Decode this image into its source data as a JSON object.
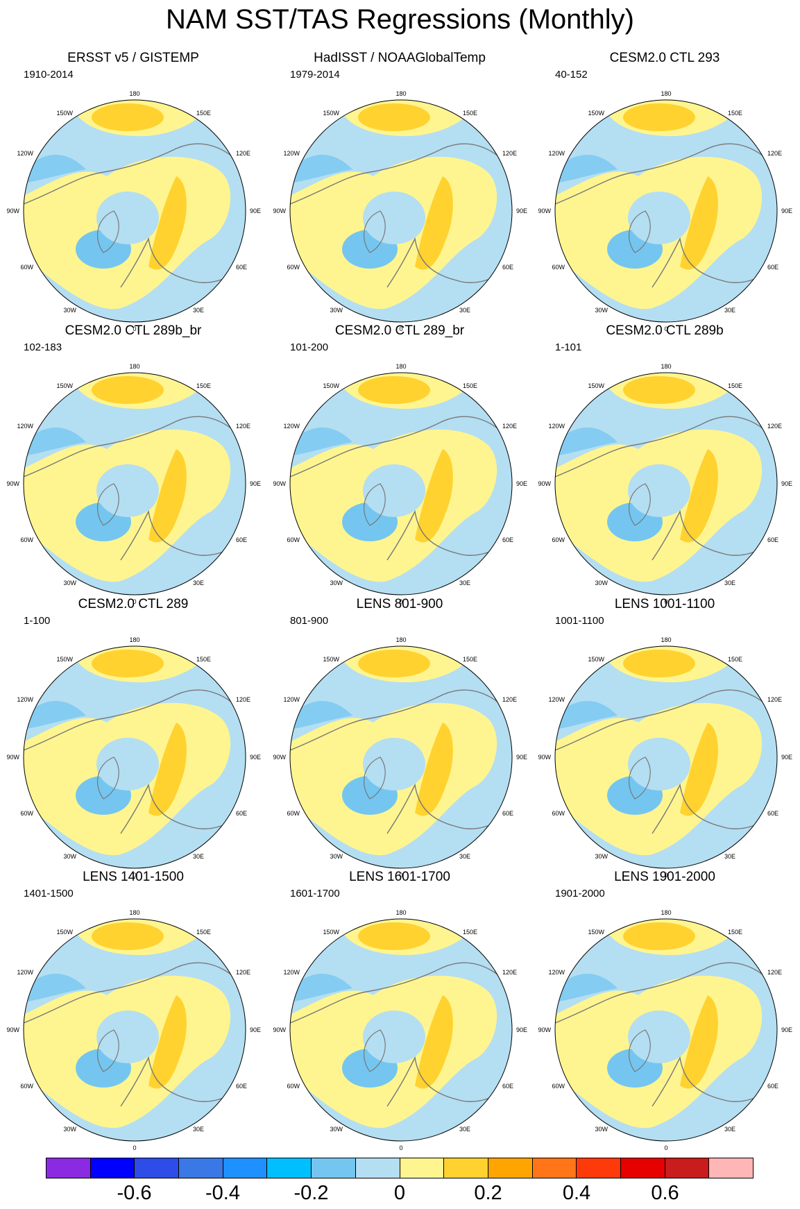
{
  "title": "NAM SST/TAS Regressions (Monthly)",
  "lon_labels": {
    "l180": "180",
    "l150e": "150E",
    "l120e": "120E",
    "l90e": "90E",
    "l60e": "60E",
    "l30e": "30E",
    "l0": "0",
    "l30w": "30W",
    "l60w": "60W",
    "l90w": "90W",
    "l120w": "120W",
    "l150w": "150W"
  },
  "panels": [
    {
      "title": "ERSST v5 / GISTEMP",
      "period": "1910-2014"
    },
    {
      "title": "HadISST / NOAAGlobalTemp",
      "period": "1979-2014"
    },
    {
      "title": "CESM2.0 CTL 293",
      "period": "40-152"
    },
    {
      "title": "CESM2.0 CTL 289b_br",
      "period": "102-183"
    },
    {
      "title": "CESM2.0 CTL 289_br",
      "period": "101-200"
    },
    {
      "title": "CESM2.0 CTL 289b",
      "period": "1-101"
    },
    {
      "title": "CESM2.0 CTL 289",
      "period": "1-100"
    },
    {
      "title": "LENS 801-900",
      "period": "801-900"
    },
    {
      "title": "LENS 1001-1100",
      "period": "1001-1100"
    },
    {
      "title": "LENS 1401-1500",
      "period": "1401-1500"
    },
    {
      "title": "LENS 1601-1700",
      "period": "1601-1700"
    },
    {
      "title": "LENS 1901-2000",
      "period": "1901-2000"
    }
  ],
  "colorbar": {
    "colors": [
      "#8A2BE2",
      "#0000FF",
      "#2E4CE8",
      "#3A78E6",
      "#1E90FF",
      "#00BFFF",
      "#74C6F0",
      "#B4DEF2",
      "#FFF590",
      "#FFD230",
      "#FFA500",
      "#FF7518",
      "#FF3A0A",
      "#E60000",
      "#C91C1C",
      "#FFB6B6"
    ],
    "labels": [
      "-0.6",
      "-0.4",
      "-0.2",
      "0",
      "0.2",
      "0.4",
      "0.6"
    ]
  },
  "field_colors": {
    "neutral_cool": "#B4DEF2",
    "weak_cool": "#74C6F0",
    "strong_cool": "#1E90FF",
    "weak_warm": "#FFF590",
    "warm": "#FFD230",
    "strong_warm": "#FFA500",
    "coast": "#777777"
  }
}
